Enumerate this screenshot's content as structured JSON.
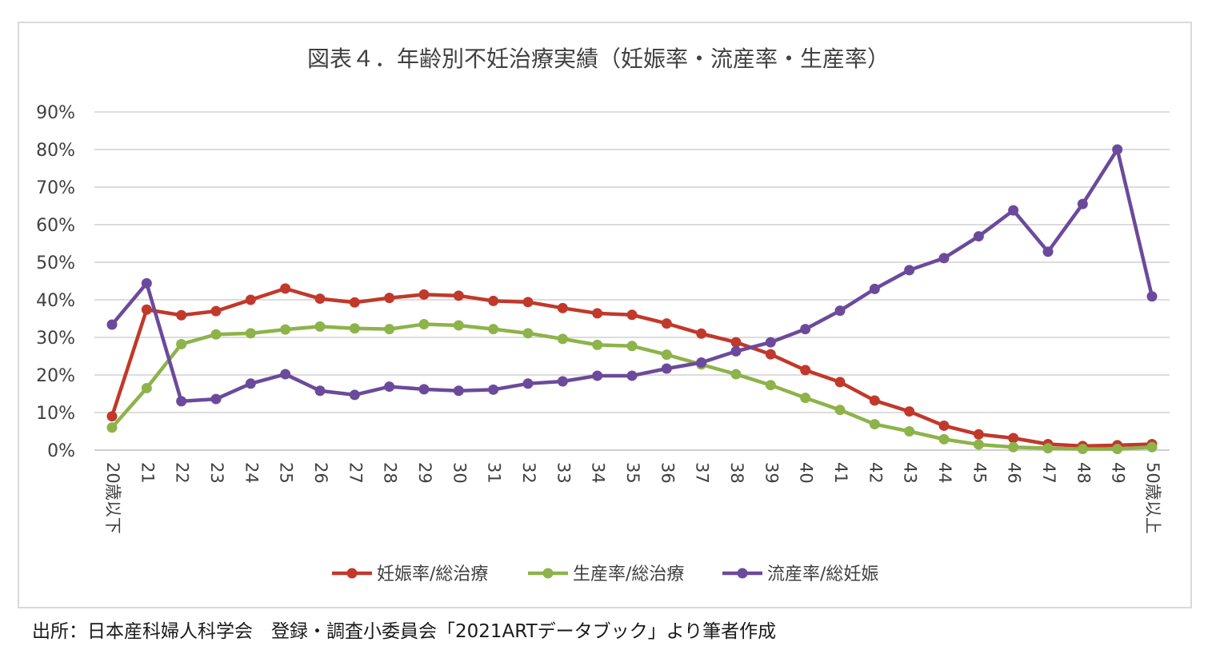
{
  "chart_data": {
    "type": "line",
    "title": "図表４．年齢別不妊治療実績（妊娠率・流産率・生産率）",
    "xlabel": "",
    "ylabel": "",
    "categories": [
      "20歳以下",
      "21",
      "22",
      "23",
      "24",
      "25",
      "26",
      "27",
      "28",
      "29",
      "30",
      "31",
      "32",
      "33",
      "34",
      "35",
      "36",
      "37",
      "38",
      "39",
      "40",
      "41",
      "42",
      "43",
      "44",
      "45",
      "46",
      "47",
      "48",
      "49",
      "50歳以上"
    ],
    "y_ticks": [
      "0%",
      "10%",
      "20%",
      "30%",
      "40%",
      "50%",
      "60%",
      "70%",
      "80%",
      "90%"
    ],
    "ylim": [
      0,
      90
    ],
    "y_unit": "%",
    "grid": true,
    "legend_position": "bottom",
    "series": [
      {
        "name": "妊娠率/総治療",
        "color": "#c0392b",
        "values": [
          9,
          37.4,
          35.9,
          37,
          40,
          43,
          40.3,
          39.3,
          40.5,
          41.4,
          41.1,
          39.7,
          39.4,
          37.8,
          36.4,
          36,
          33.7,
          31,
          28.7,
          25.5,
          21.3,
          18.1,
          13.2,
          10.3,
          6.5,
          4.2,
          3.2,
          1.6,
          1.1,
          1.3,
          1.6
        ]
      },
      {
        "name": "生産率/総治療",
        "color": "#8db34a",
        "values": [
          6,
          16.5,
          28.2,
          30.8,
          31.1,
          32.1,
          32.9,
          32.4,
          32.2,
          33.5,
          33.2,
          32.2,
          31.1,
          29.6,
          28,
          27.7,
          25.4,
          22.8,
          20.2,
          17.3,
          13.9,
          10.7,
          6.9,
          5,
          2.9,
          1.5,
          0.8,
          0.5,
          0.3,
          0.3,
          0.8
        ]
      },
      {
        "name": "流産率/総妊娠",
        "color": "#6b4a9b",
        "values": [
          33.4,
          44.4,
          13,
          13.6,
          17.7,
          20.2,
          15.8,
          14.7,
          16.9,
          16.2,
          15.8,
          16.1,
          17.7,
          18.3,
          19.8,
          19.8,
          21.7,
          23.3,
          26.3,
          28.7,
          32.2,
          37.1,
          42.9,
          47.9,
          51.1,
          56.9,
          63.8,
          52.8,
          65.5,
          80,
          40.9
        ]
      }
    ]
  },
  "footer": {
    "source": "出所：日本産科婦人科学会　登録・調査小委員会「2021ARTデータブック」より筆者作成"
  }
}
